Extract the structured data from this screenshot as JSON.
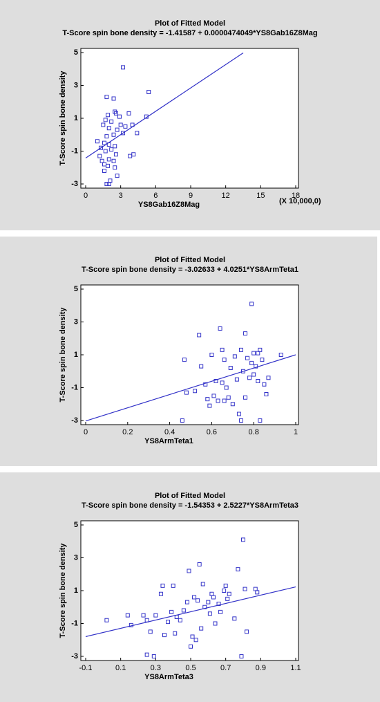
{
  "chart_data": [
    {
      "type": "scatter",
      "title": "Plot of Fitted Model",
      "subtitle": "T-Score spin bone density = -1.41587 + 0.0000474049*YS8Gab16Z8Mag",
      "xlabel": "YS8Gab16Z8Mag",
      "ylabel": "T-Score spin bone density",
      "x_note": "(X 10,000,0)",
      "color": "#3232c8",
      "xlim": [
        0,
        18
      ],
      "xticks": [
        0,
        3,
        6,
        9,
        12,
        15,
        18
      ],
      "ylim": [
        -3,
        5
      ],
      "yticks": [
        -3,
        -1,
        1,
        3,
        5
      ],
      "x": [
        1.8,
        2.4,
        3.2,
        5.4,
        2.5,
        1.9,
        2.6,
        3.7,
        5.2,
        2.9,
        1.7,
        2.2,
        3.0,
        3.4,
        4.0,
        1.5,
        2.0,
        2.7,
        3.2,
        2.4,
        1.8,
        4.4,
        1.0,
        1.6,
        2.0,
        2.5,
        1.3,
        2.2,
        1.7,
        1.2,
        2.6,
        3.8,
        4.1,
        1.4,
        2.0,
        1.6,
        2.4,
        1.9,
        2.5,
        2.7,
        1.6,
        1.8,
        2.0,
        2.1
      ],
      "values": [
        2.3,
        2.2,
        4.1,
        2.6,
        1.4,
        1.2,
        1.3,
        1.3,
        1.1,
        1.1,
        0.9,
        0.8,
        0.6,
        0.5,
        0.6,
        0.6,
        0.4,
        0.3,
        0.1,
        0.0,
        -0.1,
        0.1,
        -0.4,
        -0.5,
        -0.6,
        -0.7,
        -0.8,
        -0.9,
        -1.0,
        -1.3,
        -1.2,
        -1.3,
        -1.2,
        -1.6,
        -1.5,
        -1.8,
        -1.6,
        -1.9,
        -2.0,
        -2.5,
        -2.2,
        -3.0,
        -3.0,
        -2.8
      ],
      "fit_line": {
        "x": [
          0,
          13.5
        ],
        "y": [
          -1.42,
          4.98
        ]
      }
    },
    {
      "type": "scatter",
      "title": "Plot of Fitted Model",
      "subtitle": "T-Score spin bone density = -3.02633 + 4.0251*YS8ArmTeta1",
      "xlabel": "YS8ArmTeta1",
      "ylabel": "T-Score spin bone density",
      "color": "#3232c8",
      "xlim": [
        0,
        1
      ],
      "xticks": [
        0,
        0.2,
        0.4,
        0.6,
        0.8,
        1
      ],
      "ylim": [
        -3,
        5
      ],
      "yticks": [
        -3,
        -1,
        1,
        3,
        5
      ],
      "x": [
        0.46,
        0.47,
        0.48,
        0.52,
        0.54,
        0.55,
        0.57,
        0.58,
        0.59,
        0.6,
        0.61,
        0.62,
        0.63,
        0.64,
        0.65,
        0.65,
        0.66,
        0.67,
        0.68,
        0.69,
        0.7,
        0.71,
        0.72,
        0.73,
        0.74,
        0.74,
        0.75,
        0.76,
        0.77,
        0.78,
        0.79,
        0.79,
        0.8,
        0.8,
        0.81,
        0.82,
        0.82,
        0.83,
        0.83,
        0.84,
        0.85,
        0.86,
        0.87,
        0.93,
        0.76,
        0.66
      ],
      "values": [
        -3.0,
        0.7,
        -1.3,
        -1.2,
        2.2,
        0.3,
        -0.8,
        -1.7,
        -2.1,
        1.0,
        -1.5,
        -0.6,
        -1.8,
        2.6,
        1.3,
        -0.7,
        0.7,
        -1.0,
        -1.6,
        0.2,
        -2.0,
        0.9,
        -0.5,
        -2.6,
        1.3,
        -3.0,
        0.0,
        2.3,
        0.8,
        -0.4,
        4.1,
        0.5,
        1.1,
        -0.2,
        0.3,
        1.1,
        -0.6,
        -3.0,
        1.3,
        0.7,
        -0.8,
        -1.4,
        -0.4,
        1.0,
        -1.6,
        -1.8
      ],
      "fit_line": {
        "x": [
          0,
          1
        ],
        "y": [
          -3.03,
          1.0
        ]
      }
    },
    {
      "type": "scatter",
      "title": "Plot of Fitted Model",
      "subtitle": "T-Score spin bone density = -1.54353 + 2.5227*YS8ArmTeta3",
      "xlabel": "YS8ArmTeta3",
      "ylabel": "T-Score spin bone density",
      "color": "#3232c8",
      "xlim": [
        -0.1,
        1.1
      ],
      "xticks": [
        -0.1,
        0.1,
        0.3,
        0.5,
        0.7,
        0.9,
        1.1
      ],
      "ylim": [
        -3,
        5
      ],
      "yticks": [
        -3,
        -1,
        1,
        3,
        5
      ],
      "x": [
        0.02,
        0.14,
        0.16,
        0.23,
        0.25,
        0.25,
        0.27,
        0.29,
        0.3,
        0.33,
        0.34,
        0.35,
        0.37,
        0.39,
        0.4,
        0.41,
        0.42,
        0.44,
        0.46,
        0.48,
        0.49,
        0.5,
        0.51,
        0.52,
        0.53,
        0.54,
        0.55,
        0.56,
        0.57,
        0.58,
        0.6,
        0.61,
        0.62,
        0.63,
        0.64,
        0.66,
        0.67,
        0.69,
        0.7,
        0.71,
        0.72,
        0.75,
        0.77,
        0.79,
        0.8,
        0.81,
        0.82,
        0.87,
        0.88
      ],
      "values": [
        -0.8,
        -0.5,
        -1.1,
        -0.5,
        -0.8,
        -2.9,
        -1.5,
        -3.0,
        -0.5,
        0.8,
        1.3,
        -1.7,
        -0.9,
        -0.3,
        1.3,
        -1.6,
        -0.6,
        -0.8,
        -0.2,
        0.3,
        2.2,
        -2.4,
        -1.8,
        0.6,
        -2.0,
        0.4,
        2.6,
        -1.3,
        1.4,
        0.0,
        0.3,
        -0.4,
        0.8,
        0.6,
        -1.0,
        0.2,
        -0.3,
        1.0,
        1.3,
        0.5,
        0.8,
        -0.7,
        2.3,
        -3.0,
        4.1,
        1.1,
        -1.5,
        1.1,
        0.9
      ],
      "fit_line": {
        "x": [
          -0.1,
          1.1
        ],
        "y": [
          -1.8,
          1.23
        ]
      }
    }
  ]
}
